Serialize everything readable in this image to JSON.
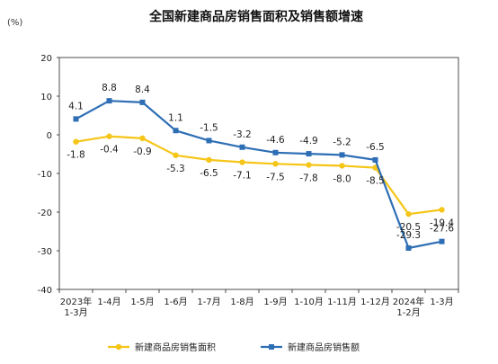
{
  "chart_data": {
    "type": "line",
    "title": "全国新建商品房销售面积及销售额增速",
    "unit_label": "(%)",
    "ylim": [
      -40,
      20
    ],
    "yticks": [
      20,
      10,
      0,
      -10,
      -20,
      -30,
      -40
    ],
    "categories": [
      [
        "2023年",
        "1-3月"
      ],
      [
        "1-4月"
      ],
      [
        "1-5月"
      ],
      [
        "1-6月"
      ],
      [
        "1-7月"
      ],
      [
        "1-8月"
      ],
      [
        "1-9月"
      ],
      [
        "1-10月"
      ],
      [
        "1-11月"
      ],
      [
        "1-12月"
      ],
      [
        "2024年",
        "1-2月"
      ],
      [
        "1-3月"
      ]
    ],
    "series": [
      {
        "name": "新建商品房销售面积",
        "color": "#F5C518",
        "marker": "circle",
        "label_position": "below",
        "values": [
          -1.8,
          -0.4,
          -0.9,
          -5.3,
          -6.5,
          -7.1,
          -7.5,
          -7.8,
          -8.0,
          -8.5,
          -20.5,
          -19.4
        ],
        "labels": [
          "-1.8",
          "-0.4",
          "-0.9",
          "-5.3",
          "-6.5",
          "-7.1",
          "-7.5",
          "-7.8",
          "-8.0",
          "-8.5",
          "-20.5",
          "-19.4"
        ]
      },
      {
        "name": "新建商品房销售额",
        "color": "#2E6EB5",
        "marker": "square",
        "label_position": "above",
        "values": [
          4.1,
          8.8,
          8.4,
          1.1,
          -1.5,
          -3.2,
          -4.6,
          -4.9,
          -5.2,
          -6.5,
          -29.3,
          -27.6
        ],
        "labels": [
          "4.1",
          "8.8",
          "8.4",
          "1.1",
          "-1.5",
          "-3.2",
          "-4.6",
          "-4.9",
          "-5.2",
          "-6.5",
          "-29.3",
          "-27.6"
        ]
      }
    ],
    "grid": false,
    "legend": "bottom"
  }
}
